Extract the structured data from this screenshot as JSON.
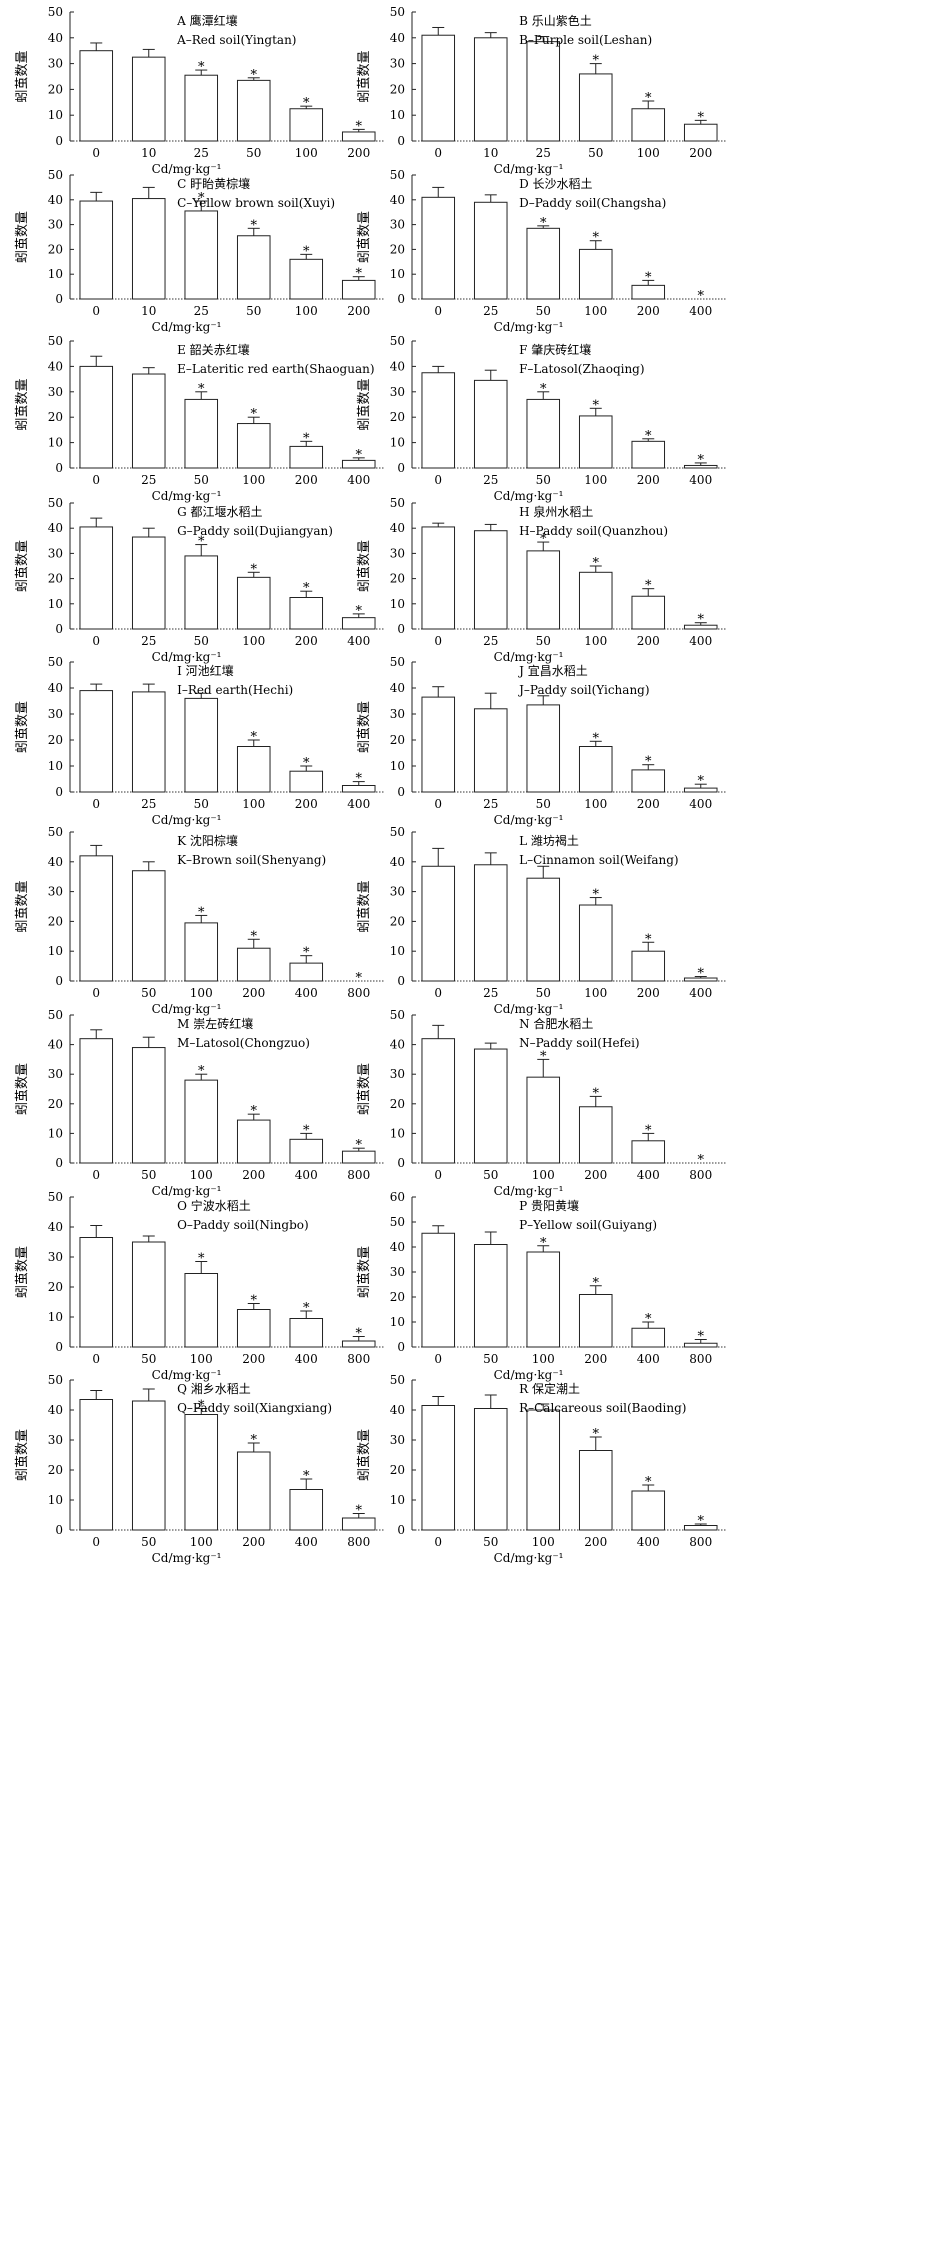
{
  "common": {
    "ylabel": "蚓茧数量",
    "xlabel": "Cd/mg·kg⁻¹",
    "significance_mark": "*"
  },
  "chart_data": [
    {
      "type": "bar",
      "title_cn": "A 鹰潭红壤",
      "title_en": "A–Red soil(Yingtan)",
      "categories": [
        "0",
        "10",
        "25",
        "50",
        "100",
        "200"
      ],
      "values": [
        35,
        32.5,
        25.5,
        23.5,
        12.5,
        3.5
      ],
      "errors": [
        3,
        3,
        2,
        1,
        1,
        1
      ],
      "significant": [
        false,
        false,
        true,
        true,
        true,
        true
      ],
      "ylim": [
        0,
        50
      ],
      "yticks": [
        0,
        10,
        20,
        30,
        40,
        50
      ]
    },
    {
      "type": "bar",
      "title_cn": "B 乐山紫色土",
      "title_en": "B–Purple soil(Leshan)",
      "categories": [
        "0",
        "10",
        "25",
        "50",
        "100",
        "200"
      ],
      "values": [
        41,
        40,
        38.5,
        26,
        12.5,
        6.5
      ],
      "errors": [
        3,
        2,
        2,
        4,
        3,
        1.5
      ],
      "significant": [
        false,
        false,
        false,
        true,
        true,
        true
      ],
      "ylim": [
        0,
        50
      ],
      "yticks": [
        0,
        10,
        20,
        30,
        40,
        50
      ]
    },
    {
      "type": "bar",
      "title_cn": "C 盱眙黄棕壤",
      "title_en": "C–Yellow brown soil(Xuyi)",
      "categories": [
        "0",
        "10",
        "25",
        "50",
        "100",
        "200"
      ],
      "values": [
        39.5,
        40.5,
        35.5,
        25.5,
        16,
        7.5
      ],
      "errors": [
        3.5,
        4.5,
        4,
        3,
        2,
        1.5
      ],
      "significant": [
        false,
        false,
        true,
        true,
        true,
        true
      ],
      "ylim": [
        0,
        50
      ],
      "yticks": [
        0,
        10,
        20,
        30,
        40,
        50
      ]
    },
    {
      "type": "bar",
      "title_cn": "D 长沙水稻土",
      "title_en": "D–Paddy soil(Changsha)",
      "categories": [
        "0",
        "25",
        "50",
        "100",
        "200",
        "400"
      ],
      "values": [
        41,
        39,
        28.5,
        20,
        5.5,
        0
      ],
      "errors": [
        4,
        3,
        1,
        3.5,
        2,
        0
      ],
      "significant": [
        false,
        false,
        true,
        true,
        true,
        true
      ],
      "ylim": [
        0,
        50
      ],
      "yticks": [
        0,
        10,
        20,
        30,
        40,
        50
      ]
    },
    {
      "type": "bar",
      "title_cn": "E 韶关赤红壤",
      "title_en": "E–Lateritic red earth(Shaoguan)",
      "categories": [
        "0",
        "25",
        "50",
        "100",
        "200",
        "400"
      ],
      "values": [
        40,
        37,
        27,
        17.5,
        8.5,
        3
      ],
      "errors": [
        4,
        2.5,
        3,
        2.5,
        2,
        1
      ],
      "significant": [
        false,
        false,
        true,
        true,
        true,
        true
      ],
      "ylim": [
        0,
        50
      ],
      "yticks": [
        0,
        10,
        20,
        30,
        40,
        50
      ]
    },
    {
      "type": "bar",
      "title_cn": "F 肇庆砖红壤",
      "title_en": "F–Latosol(Zhaoqing)",
      "categories": [
        "0",
        "25",
        "50",
        "100",
        "200",
        "400"
      ],
      "values": [
        37.5,
        34.5,
        27,
        20.5,
        10.5,
        1
      ],
      "errors": [
        2.5,
        4,
        3,
        3,
        1,
        1
      ],
      "significant": [
        false,
        false,
        true,
        true,
        true,
        true
      ],
      "ylim": [
        0,
        50
      ],
      "yticks": [
        0,
        10,
        20,
        30,
        40,
        50
      ]
    },
    {
      "type": "bar",
      "title_cn": "G 都江堰水稻土",
      "title_en": "G–Paddy soil(Dujiangyan)",
      "categories": [
        "0",
        "25",
        "50",
        "100",
        "200",
        "400"
      ],
      "values": [
        40.5,
        36.5,
        29,
        20.5,
        12.5,
        4.5
      ],
      "errors": [
        3.5,
        3.5,
        4.5,
        2,
        2.5,
        1.5
      ],
      "significant": [
        false,
        false,
        true,
        true,
        true,
        true
      ],
      "ylim": [
        0,
        50
      ],
      "yticks": [
        0,
        10,
        20,
        30,
        40,
        50
      ]
    },
    {
      "type": "bar",
      "title_cn": "H 泉州水稻土",
      "title_en": "H–Paddy soil(Quanzhou)",
      "categories": [
        "0",
        "25",
        "50",
        "100",
        "200",
        "400"
      ],
      "values": [
        40.5,
        39,
        31,
        22.5,
        13,
        1.5
      ],
      "errors": [
        1.5,
        2.5,
        3.5,
        2.5,
        3,
        1
      ],
      "significant": [
        false,
        false,
        true,
        true,
        true,
        true
      ],
      "ylim": [
        0,
        50
      ],
      "yticks": [
        0,
        10,
        20,
        30,
        40,
        50
      ]
    },
    {
      "type": "bar",
      "title_cn": "I 河池红壤",
      "title_en": "I–Red earth(Hechi)",
      "categories": [
        "0",
        "25",
        "50",
        "100",
        "200",
        "400"
      ],
      "values": [
        39,
        38.5,
        36,
        17.5,
        8,
        2.5
      ],
      "errors": [
        2.5,
        3,
        2,
        2.5,
        2,
        1.5
      ],
      "significant": [
        false,
        false,
        false,
        true,
        true,
        true
      ],
      "ylim": [
        0,
        50
      ],
      "yticks": [
        0,
        10,
        20,
        30,
        40,
        50
      ]
    },
    {
      "type": "bar",
      "title_cn": "J 宜昌水稻土",
      "title_en": "J–Paddy soil(Yichang)",
      "categories": [
        "0",
        "25",
        "50",
        "100",
        "200",
        "400"
      ],
      "values": [
        36.5,
        32,
        33.5,
        17.5,
        8.5,
        1.5
      ],
      "errors": [
        4,
        6,
        3.5,
        2,
        2,
        1.5
      ],
      "significant": [
        false,
        false,
        false,
        true,
        true,
        true
      ],
      "ylim": [
        0,
        50
      ],
      "yticks": [
        0,
        10,
        20,
        30,
        40,
        50
      ]
    },
    {
      "type": "bar",
      "title_cn": "K 沈阳棕壤",
      "title_en": "K–Brown soil(Shenyang)",
      "categories": [
        "0",
        "50",
        "100",
        "200",
        "400",
        "800"
      ],
      "values": [
        42,
        37,
        19.5,
        11,
        6,
        0
      ],
      "errors": [
        3.5,
        3,
        2.5,
        3,
        2.5,
        0
      ],
      "significant": [
        false,
        false,
        true,
        true,
        true,
        true
      ],
      "ylim": [
        0,
        50
      ],
      "yticks": [
        0,
        10,
        20,
        30,
        40,
        50
      ]
    },
    {
      "type": "bar",
      "title_cn": "L 潍坊褐土",
      "title_en": "L–Cinnamon soil(Weifang)",
      "categories": [
        "0",
        "25",
        "50",
        "100",
        "200",
        "400"
      ],
      "values": [
        38.5,
        39,
        34.5,
        25.5,
        10,
        1
      ],
      "errors": [
        6,
        4,
        4,
        2.5,
        3,
        0.5
      ],
      "significant": [
        false,
        false,
        false,
        true,
        true,
        true
      ],
      "ylim": [
        0,
        50
      ],
      "yticks": [
        0,
        10,
        20,
        30,
        40,
        50
      ]
    },
    {
      "type": "bar",
      "title_cn": "M 崇左砖红壤",
      "title_en": "M–Latosol(Chongzuo)",
      "categories": [
        "0",
        "50",
        "100",
        "200",
        "400",
        "800"
      ],
      "values": [
        42,
        39,
        28,
        14.5,
        8,
        4
      ],
      "errors": [
        3,
        3.5,
        2,
        2,
        2,
        1
      ],
      "significant": [
        false,
        false,
        true,
        true,
        true,
        true
      ],
      "ylim": [
        0,
        50
      ],
      "yticks": [
        0,
        10,
        20,
        30,
        40,
        50
      ]
    },
    {
      "type": "bar",
      "title_cn": "N 合肥水稻土",
      "title_en": "N–Paddy soil(Hefei)",
      "categories": [
        "0",
        "50",
        "100",
        "200",
        "400",
        "800"
      ],
      "values": [
        42,
        38.5,
        29,
        19,
        7.5,
        0
      ],
      "errors": [
        4.5,
        2,
        6,
        3.5,
        2.5,
        0
      ],
      "significant": [
        false,
        false,
        true,
        true,
        true,
        true
      ],
      "ylim": [
        0,
        50
      ],
      "yticks": [
        0,
        10,
        20,
        30,
        40,
        50
      ]
    },
    {
      "type": "bar",
      "title_cn": "O 宁波水稻土",
      "title_en": "O–Paddy soil(Ningbo)",
      "categories": [
        "0",
        "50",
        "100",
        "200",
        "400",
        "800"
      ],
      "values": [
        36.5,
        35,
        24.5,
        12.5,
        9.5,
        2
      ],
      "errors": [
        4,
        2,
        4,
        2,
        2.5,
        1.5
      ],
      "significant": [
        false,
        false,
        true,
        true,
        true,
        true
      ],
      "ylim": [
        0,
        50
      ],
      "yticks": [
        0,
        10,
        20,
        30,
        40,
        50
      ]
    },
    {
      "type": "bar",
      "title_cn": "P 贵阳黄壤",
      "title_en": "P–Yellow soil(Guiyang)",
      "categories": [
        "0",
        "50",
        "100",
        "200",
        "400",
        "800"
      ],
      "values": [
        45.5,
        41,
        38,
        21,
        7.5,
        1.5
      ],
      "errors": [
        3,
        5,
        2.5,
        3.5,
        2.5,
        1.5
      ],
      "significant": [
        false,
        false,
        true,
        true,
        true,
        true
      ],
      "ylim": [
        0,
        60
      ],
      "yticks": [
        0,
        10,
        20,
        30,
        40,
        50,
        60
      ]
    },
    {
      "type": "bar",
      "title_cn": "Q 湘乡水稻土",
      "title_en": "Q–Paddy soil(Xiangxiang)",
      "categories": [
        "0",
        "50",
        "100",
        "200",
        "400",
        "800"
      ],
      "values": [
        43.5,
        43,
        38.5,
        26,
        13.5,
        4
      ],
      "errors": [
        3,
        4,
        2,
        3,
        3.5,
        1.5
      ],
      "significant": [
        false,
        false,
        true,
        true,
        true,
        true
      ],
      "ylim": [
        0,
        50
      ],
      "yticks": [
        0,
        10,
        20,
        30,
        40,
        50
      ]
    },
    {
      "type": "bar",
      "title_cn": "R 保定潮土",
      "title_en": "R–Calcareous soil(Baoding)",
      "categories": [
        "0",
        "50",
        "100",
        "200",
        "400",
        "800"
      ],
      "values": [
        41.5,
        40.5,
        40,
        26.5,
        13,
        1.5
      ],
      "errors": [
        3,
        4.5,
        2,
        4.5,
        2,
        0.5
      ],
      "significant": [
        false,
        false,
        false,
        true,
        true,
        true
      ],
      "ylim": [
        0,
        50
      ],
      "yticks": [
        0,
        10,
        20,
        30,
        40,
        50
      ]
    }
  ]
}
